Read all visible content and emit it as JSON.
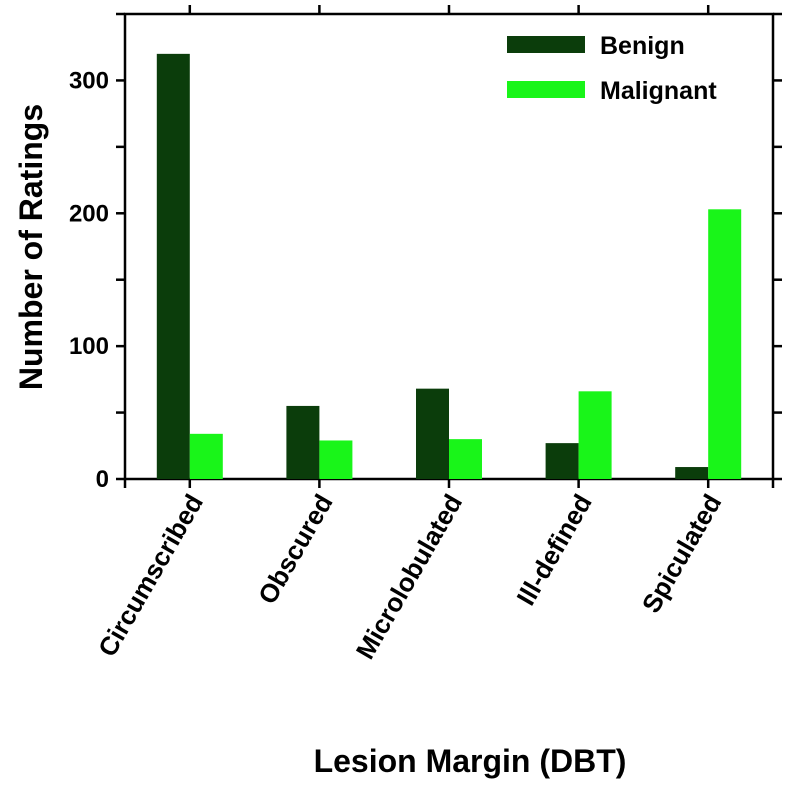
{
  "chart_data": {
    "type": "bar",
    "title": "",
    "xlabel": "Lesion Margin (DBT)",
    "ylabel": "Number of Ratings",
    "categories": [
      "Circumscribed",
      "Obscured",
      "Microlobulated",
      "Ill-defined",
      "Spiculated"
    ],
    "series": [
      {
        "name": "Benign",
        "color": "#0b3d0b",
        "values": [
          320,
          55,
          68,
          27,
          9
        ]
      },
      {
        "name": "Malignant",
        "color": "#19f519",
        "values": [
          34,
          29,
          30,
          66,
          203
        ]
      }
    ],
    "ylim": [
      0,
      350
    ],
    "yticks": [
      0,
      100,
      200,
      300
    ],
    "grid": false,
    "legend_position": "top-right"
  }
}
